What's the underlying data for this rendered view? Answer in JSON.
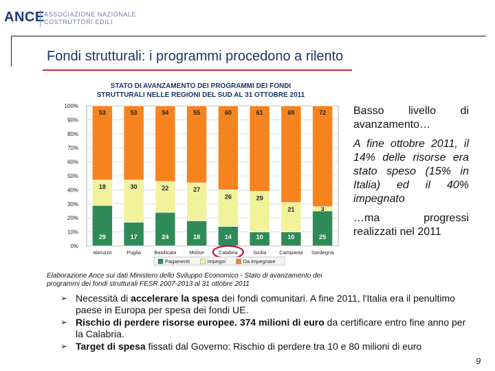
{
  "header": {
    "logo": "ANCE",
    "logo_sub_line1": "ASSOCIAZIONE NAZIONALE",
    "logo_sub_line2": "COSTRUTTORI EDILI"
  },
  "slide": {
    "title": "Fondi strutturali: i programmi procedono a rilento",
    "page_number": "9"
  },
  "right_panel": {
    "p1": "Basso livello di avanzamento…",
    "p2": "A fine ottobre 2011, il 14% delle risorse era stato speso (15% in Italia) ed il 40% impegnato",
    "p3": "…ma progressi realizzati nel 2011"
  },
  "source": "Elaborazione Ance sui dati Ministero dello Sviluppo Economico - Stato di avanzamento dei programmi dei fondi strutturali FESR 2007-2013 al 31 ottobre 2011",
  "bullets": [
    {
      "pre": "Necessità di ",
      "bold": "accelerare la spesa",
      "post": " dei fondi comunitari. A fine 2011, l'Italia era il penultimo paese in Europa per spesa dei fondi UE."
    },
    {
      "pre": "",
      "bold": "Rischio di perdere risorse europee. 374 milioni di euro",
      "post": " da certificare entro fine anno per la Calabria."
    },
    {
      "pre": "",
      "bold": "Target di spesa",
      "post": " fissati dal Governo: Rischio di perdere tra 10 e 80 milioni di euro"
    }
  ],
  "colors": {
    "pagamenti": "#2e8b57",
    "impegni": "#f2f29a",
    "da_impegnare": "#f7831e",
    "title": "#1a3466",
    "highlight": "#c0143c"
  },
  "chart_data": {
    "type": "bar",
    "stacked": true,
    "title": "STATO DI AVANZAMENTO DEI PROGRAMMI DEI FONDI STRUTTURALI NELLE REGIONI DEL SUD AL 31 OTTOBRE 2011",
    "title_line1": "STATO DI AVANZAMENTO DEI PROGRAMMI DEI FONDI",
    "title_line2": "STRUTTURALI NELLE REGIONI DEL SUD AL 31 OTTOBRE 2011",
    "categories": [
      "Abruzzo",
      "Puglia",
      "Basilicata",
      "Molise",
      "Calabria",
      "Sicilia",
      "Campania",
      "Sardegna"
    ],
    "highlighted_category": "Calabria",
    "yticks": [
      "0%",
      "10%",
      "20%",
      "30%",
      "40%",
      "50%",
      "60%",
      "70%",
      "80%",
      "90%",
      "100%"
    ],
    "ylim": [
      0,
      100
    ],
    "series": [
      {
        "name": "Pagamenti",
        "values": [
          29,
          17,
          24,
          18,
          14,
          10,
          10,
          25
        ]
      },
      {
        "name": "Impegni",
        "values": [
          18,
          30,
          22,
          27,
          26,
          29,
          21,
          3
        ]
      },
      {
        "name": "Da impegnare",
        "values": [
          53,
          53,
          54,
          55,
          60,
          61,
          69,
          72
        ]
      }
    ],
    "legend": [
      "Pagamenti",
      "Impegni",
      "Da impegnare"
    ],
    "legend_position": "bottom"
  }
}
